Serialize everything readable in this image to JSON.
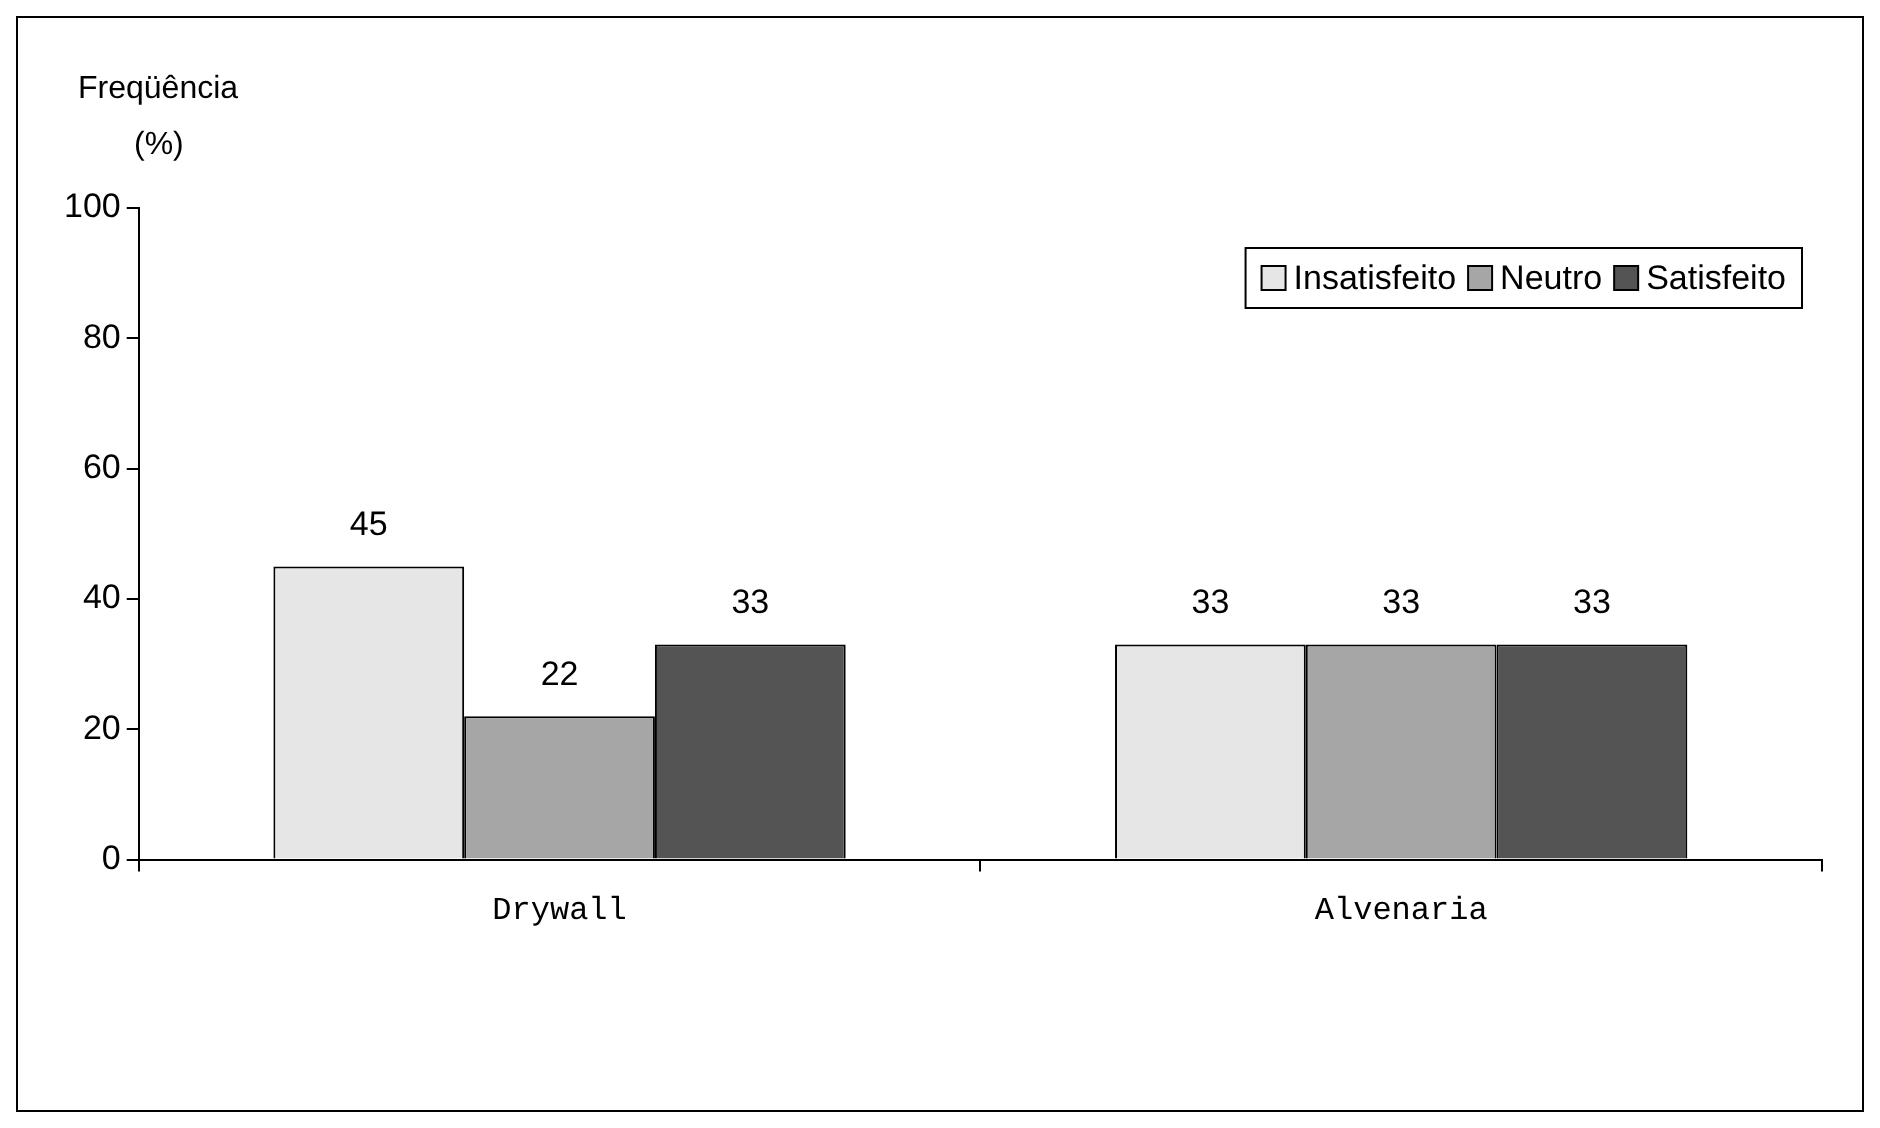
{
  "chart_data": {
    "type": "bar",
    "ylabel": "Freqüência (%)",
    "categories": [
      "Drywall",
      "Alvenaria"
    ],
    "series": [
      {
        "name": "Insatisfeito",
        "color": "#e6e6e6",
        "values": [
          45,
          33
        ]
      },
      {
        "name": "Neutro",
        "color": "#a6a6a6",
        "values": [
          22,
          33
        ]
      },
      {
        "name": "Satisfeito",
        "color": "#545454",
        "values": [
          33,
          33
        ]
      }
    ],
    "ylim": [
      0,
      100
    ],
    "yticks": [
      0,
      20,
      40,
      60,
      80,
      100
    ],
    "data_labels": true,
    "legend": "top right"
  }
}
